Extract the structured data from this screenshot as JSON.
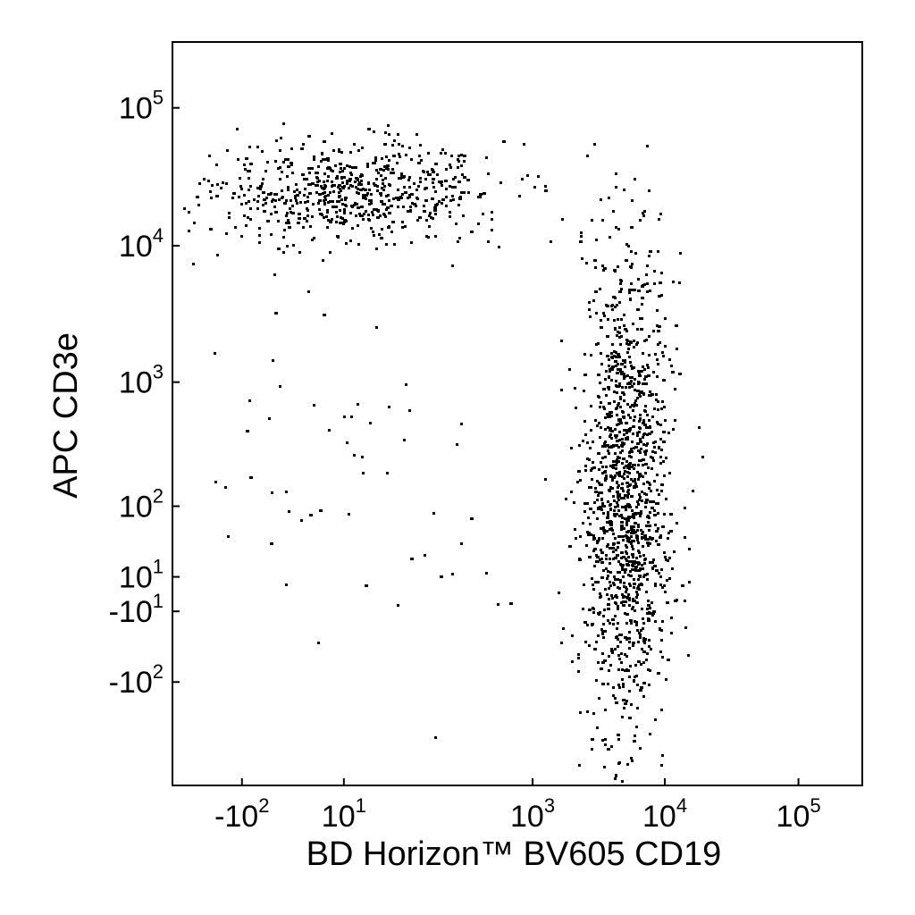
{
  "chart_data": {
    "type": "scatter",
    "title": "",
    "xlabel": "BD Horizon™ BV605 CD19",
    "ylabel": "APC CD3e",
    "x_scale": "biexponential",
    "y_scale": "biexponential",
    "grid": false,
    "legend": "none",
    "marker_color": "#000000",
    "x_ticks": [
      {
        "base": "-10",
        "exp": "2",
        "value": -100
      },
      {
        "base": "10",
        "exp": "1",
        "value": 10
      },
      {
        "base": "10",
        "exp": "3",
        "value": 1000
      },
      {
        "base": "10",
        "exp": "4",
        "value": 10000
      },
      {
        "base": "10",
        "exp": "5",
        "value": 100000
      }
    ],
    "y_ticks": [
      {
        "base": "10",
        "exp": "5",
        "value": 100000
      },
      {
        "base": "10",
        "exp": "4",
        "value": 10000
      },
      {
        "base": "10",
        "exp": "3",
        "value": 1000
      },
      {
        "base": "10",
        "exp": "2",
        "value": 100
      },
      {
        "base": "10",
        "exp": "1",
        "value": 10
      },
      {
        "base": "-10",
        "exp": "1",
        "value": -10
      },
      {
        "base": "-10",
        "exp": "2",
        "value": -100
      }
    ],
    "populations": [
      {
        "cx": 14,
        "cy": 25000,
        "x_spread": 0.55,
        "y_spread": 0.18,
        "count": 650
      },
      {
        "cx": 5000,
        "cy": 120,
        "x_spread": 0.16,
        "y_spread": 0.9,
        "count": 1350
      },
      {
        "cx": 12,
        "cy": 150,
        "x_spread": 0.5,
        "y_spread": 0.7,
        "count": 55
      }
    ]
  }
}
